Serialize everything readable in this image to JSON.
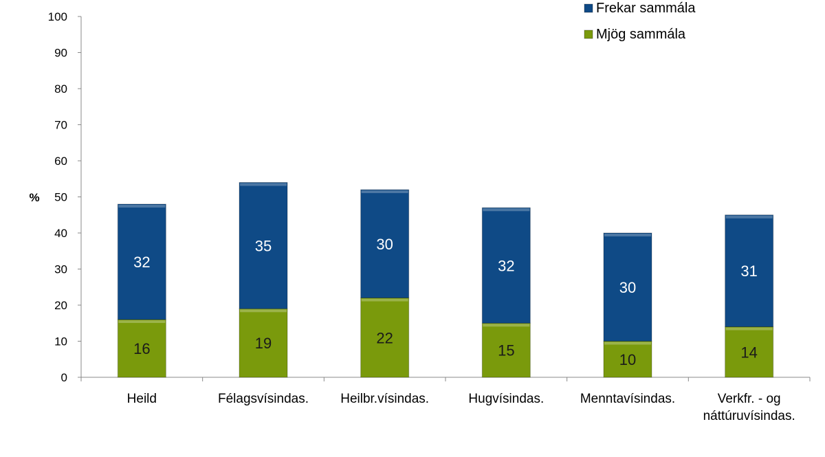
{
  "chart_data": {
    "type": "bar",
    "stacked": true,
    "title": "",
    "xlabel": "",
    "ylabel": "%",
    "ylim": [
      0,
      100
    ],
    "yticks": [
      0,
      10,
      20,
      30,
      40,
      50,
      60,
      70,
      80,
      90,
      100
    ],
    "grid": false,
    "legend_position": "top-right",
    "categories": [
      [
        "Heild"
      ],
      [
        "Félagsvísindas."
      ],
      [
        "Heilbr.vísindas."
      ],
      [
        "Hugvísindas."
      ],
      [
        "Menntavísindas."
      ],
      [
        "Verkfr. - og",
        "náttúruvísindas."
      ]
    ],
    "series": [
      {
        "name": "Mjög sammála",
        "color": "#7a9a0c",
        "label_color": "#1a1a1a",
        "values": [
          16,
          19,
          22,
          15,
          10,
          14
        ]
      },
      {
        "name": "Frekar sammála",
        "color": "#0f4a86",
        "label_color": "#ffffff",
        "values": [
          32,
          35,
          30,
          32,
          30,
          31
        ]
      }
    ],
    "legend_order": [
      1,
      0
    ]
  }
}
